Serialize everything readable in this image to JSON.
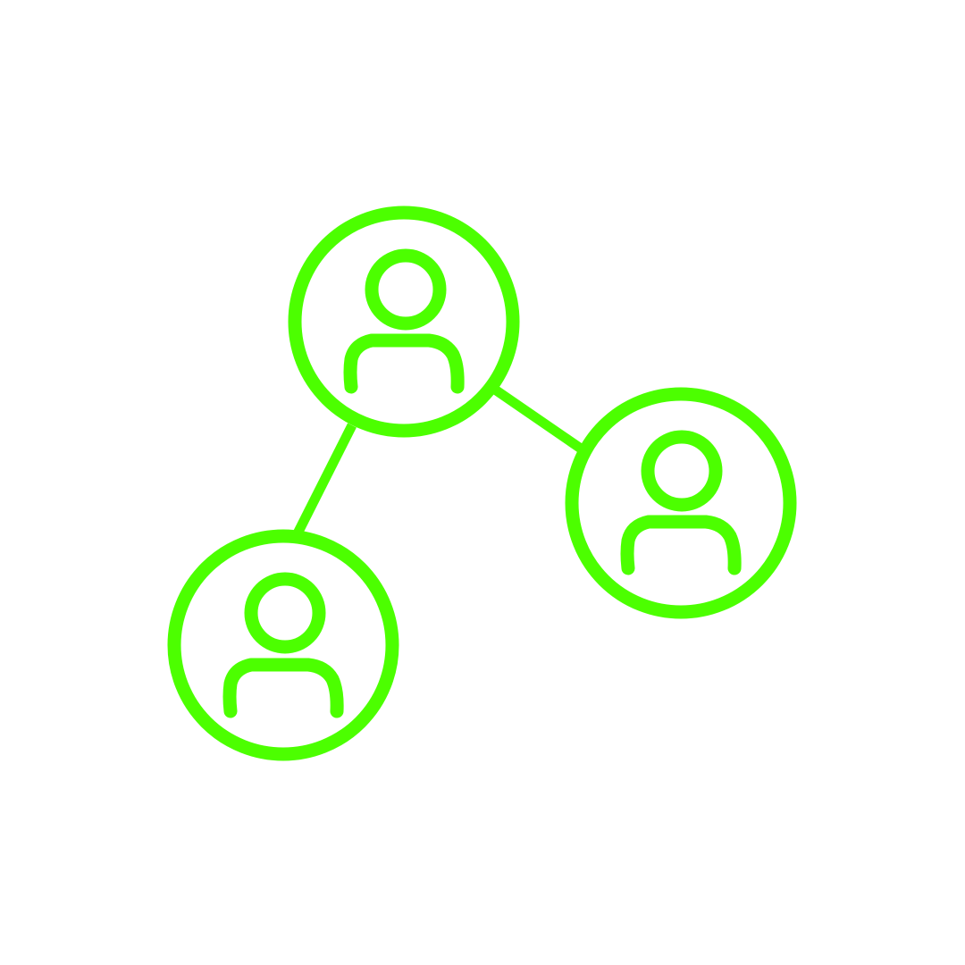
{
  "icon": {
    "name": "user-network-icon",
    "stroke_color": "#4CFF00",
    "background_color": "#FFFFFF",
    "nodes": [
      {
        "id": "top",
        "icon": "user-icon"
      },
      {
        "id": "right",
        "icon": "user-icon"
      },
      {
        "id": "bottom-left",
        "icon": "user-icon"
      }
    ],
    "connections": [
      {
        "from": "top",
        "to": "right"
      },
      {
        "from": "top",
        "to": "bottom-left"
      }
    ]
  }
}
